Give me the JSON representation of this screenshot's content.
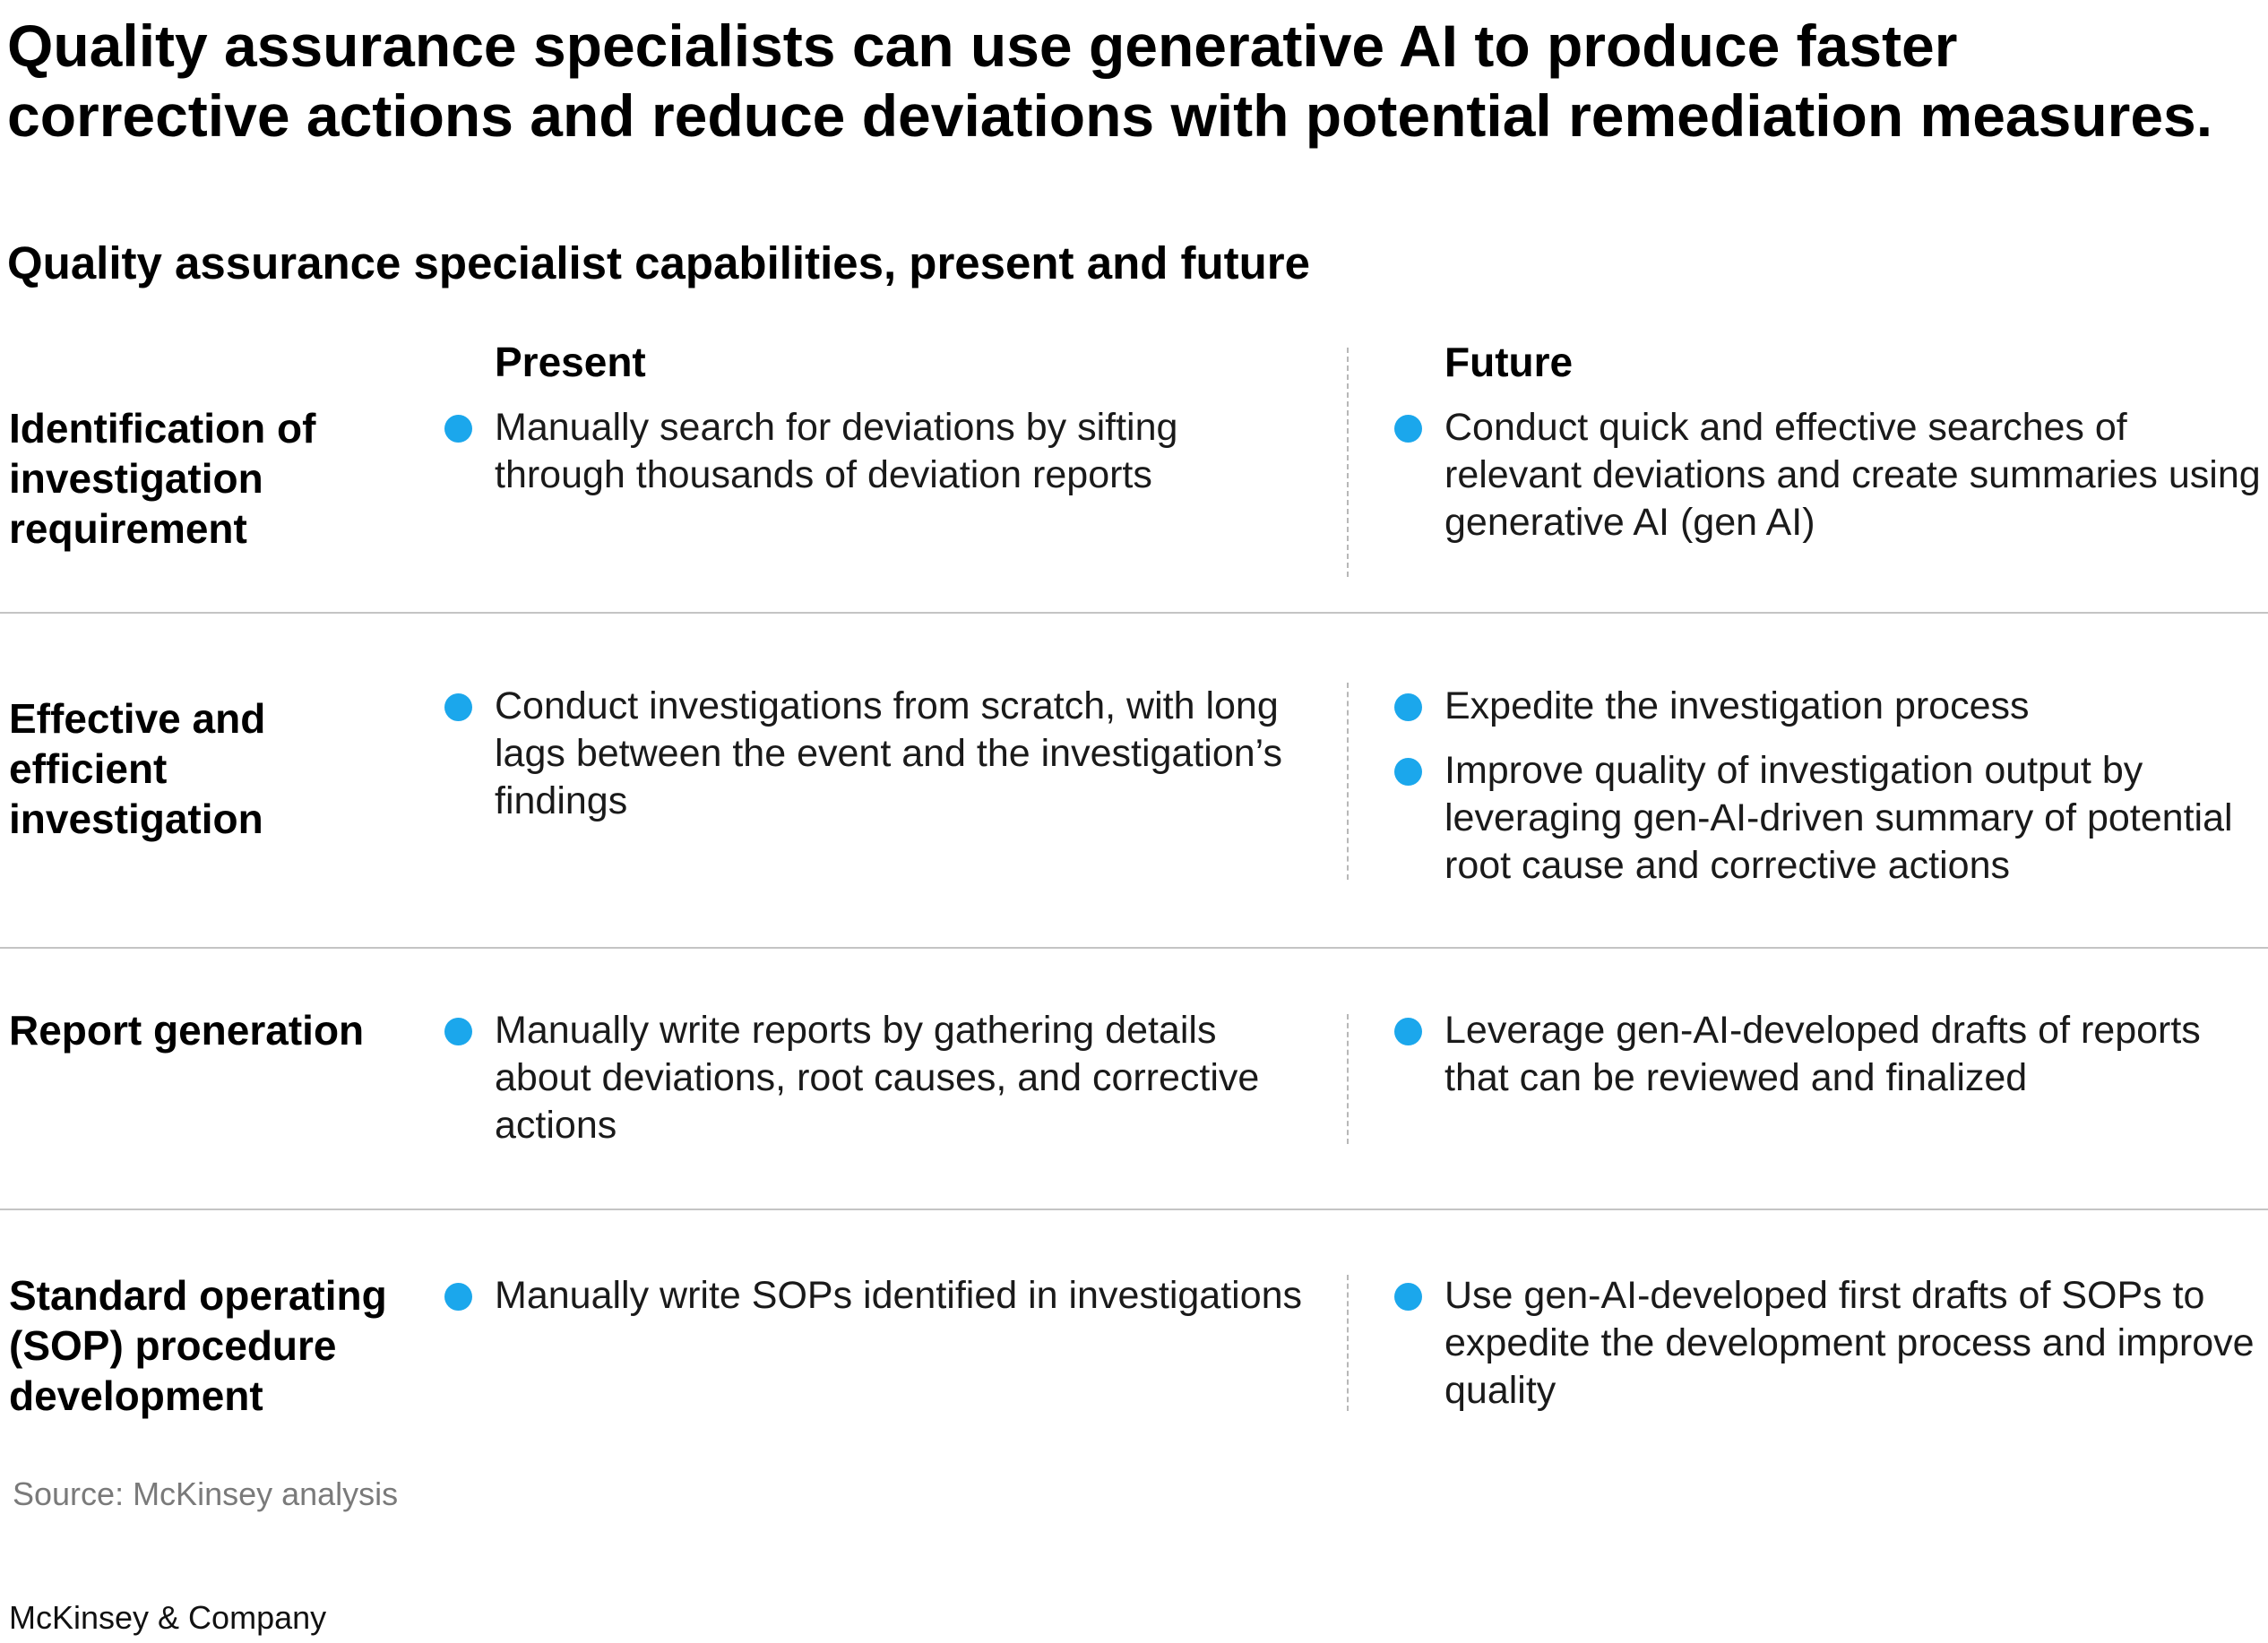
{
  "title": "Quality assurance specialists can use generative AI to produce faster corrective actions and reduce deviations with potential remediation measures.",
  "subtitle": "Quality assurance specialist capabilities, present and future",
  "columns": {
    "present": "Present",
    "future": "Future"
  },
  "rows": [
    {
      "label": "Identification of investigation requirement",
      "present": [
        "Manually search for deviations by sifting through thousands of deviation reports"
      ],
      "future": [
        "Conduct quick and effective searches of relevant deviations and create summaries using generative AI (gen AI)"
      ]
    },
    {
      "label": "Effective and efficient investigation",
      "present": [
        "Conduct investigations from scratch, with long lags between the event and the investigation’s findings"
      ],
      "future": [
        "Expedite the investigation process",
        "Improve quality of investigation output by leveraging gen-AI-driven summary of potential root cause and corrective actions"
      ]
    },
    {
      "label": "Report generation",
      "present": [
        "Manually write reports by gathering details about deviations, root causes, and corrective actions"
      ],
      "future": [
        "Leverage gen-AI-developed drafts of reports that can be reviewed and finalized"
      ]
    },
    {
      "label": "Standard operating (SOP) procedure development",
      "present": [
        "Manually write SOPs identified in investigations"
      ],
      "future": [
        "Use gen-AI-developed first drafts of SOPs to expedite the development process and improve quality"
      ]
    }
  ],
  "source": "Source: McKinsey analysis",
  "brand": "McKinsey & Company",
  "colors": {
    "bullet": "#1ba7ec",
    "divider": "#c4c4c4"
  }
}
